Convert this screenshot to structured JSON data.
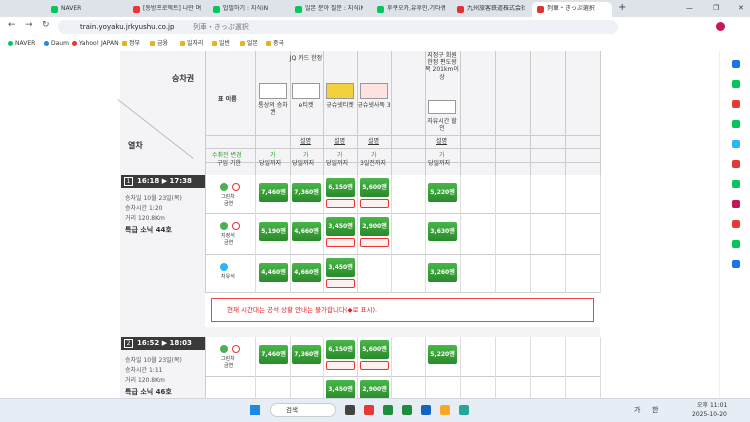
{
  "browser": {
    "tabs": [
      "NAVER",
      "[동방프로젝트] 나만 며",
      "밥벌하기 : 지식iN",
      "일본 분야 질문 : 지식iN",
      "후쿠오카,유후인,기타큐",
      "九州旅客鉄道株式会社",
      "列車・きっぷ選択"
    ],
    "url": "train.yoyaku.jrkyushu.co.jp",
    "page_title": "列車・きっぷ選択",
    "bookmarks": [
      "NAVER",
      "Daum",
      "Yahoo! JAPAN",
      "정부",
      "금융",
      "일자리",
      "일반",
      "일본",
      "중국"
    ]
  },
  "table": {
    "section": "승차권",
    "train_header": "열차",
    "ticket_name_header": "표 이름",
    "change_header": "수취전 변경",
    "deadline_header": "구입 기한",
    "tickets": [
      {
        "name": "통상의 승차권",
        "mark": "가",
        "deadline": "당일까지"
      },
      {
        "note": "JQ 카드 한정",
        "name": "e티켓",
        "link": "설명",
        "mark": "가",
        "deadline": "당일까지"
      },
      {
        "name": "규슈넷티켓",
        "link": "설명",
        "mark": "가",
        "deadline": "당일까지"
      },
      {
        "name": "규슈넷사뚝 3",
        "link": "설명",
        "mark": "가",
        "deadline": "3일전까지"
      },
      {
        "note": "지정구 회원 한정 편도왕복 201km이상",
        "name": "자유시간 할인",
        "link": "설명",
        "mark": "가",
        "deadline": "당일까지"
      }
    ]
  },
  "trains": [
    {
      "no": "1",
      "time": "16:18 ▶ 17:38",
      "date": "승차일 10월 23일(목)",
      "duration": "승차시간 1:20",
      "distance": "거리 120.8Km",
      "name": "특급 소닉 44호",
      "classes": [
        {
          "name": "그린차",
          "sub": "금연",
          "prices": [
            "7,460엔",
            "7,360엔",
            "6,150엔",
            "5,600엔",
            "5,220엔"
          ]
        },
        {
          "name": "지정석",
          "sub": "금연",
          "prices": [
            "5,190엔",
            "4,660엔",
            "3,450엔",
            "2,900엔",
            "3,630엔"
          ]
        },
        {
          "name": "자유석",
          "prices": [
            "4,460엔",
            "4,660엔",
            "3,450엔",
            null,
            "3,260엔"
          ]
        }
      ]
    },
    {
      "no": "2",
      "time": "16:52 ▶ 18:03",
      "date": "승차일 10월 23일(목)",
      "duration": "승차시간 1:11",
      "distance": "거리 120.8Km",
      "name": "특급 소닉 46호",
      "classes": [
        {
          "name": "그린차",
          "sub": "금연",
          "prices": [
            "7,460엔",
            "7,360엔",
            "6,150엔",
            "5,600엔",
            "5,220엔"
          ]
        },
        {
          "prices": [
            null,
            null,
            "3,450엔",
            "2,900엔",
            null
          ]
        }
      ]
    }
  ],
  "notice": "현재 시간대는 공석 상황 안내는 불가합니다(◆로 표시).",
  "taskbar": {
    "search": "검색",
    "ime": [
      "가",
      "한"
    ],
    "time": "오후 11:01",
    "date": "2025-10-20"
  }
}
